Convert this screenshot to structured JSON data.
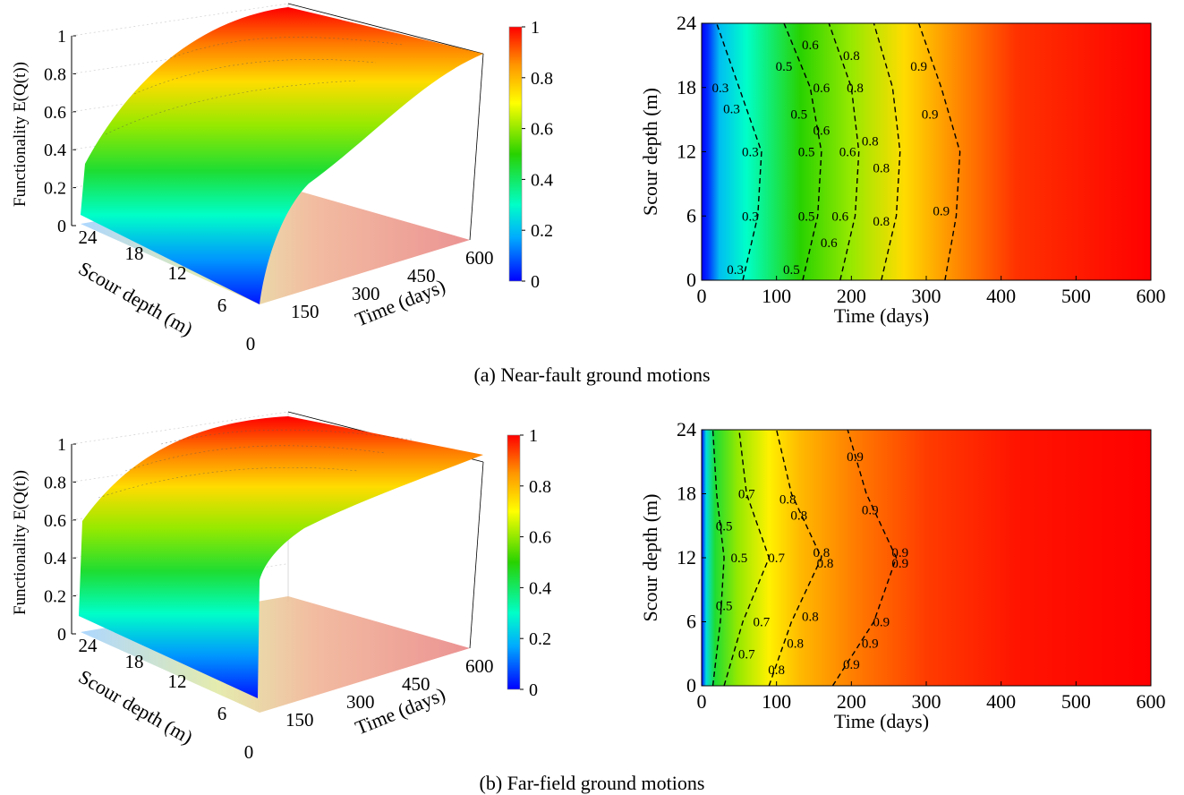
{
  "captions": {
    "a": "(a) Near-fault ground motions",
    "b": "(b) Far-field ground motions"
  },
  "colorbar": {
    "ticks": [
      "0",
      "0.2",
      "0.4",
      "0.6",
      "0.8",
      "1"
    ],
    "colors": [
      "#0000ff",
      "#00c8ff",
      "#00ff9a",
      "#30d000",
      "#ffff00",
      "#ffaa00",
      "#ff0000"
    ]
  },
  "chart_data": [
    {
      "type": "area",
      "panel": "a-3d",
      "zlabel": "Functionality E(Q(t))",
      "xlabel": "Time (days)",
      "ylabel": "Scour depth (m)",
      "z_ticks": [
        "0",
        "0.2",
        "0.4",
        "0.6",
        "0.8",
        "1"
      ],
      "x_ticks": [
        "150",
        "300",
        "450",
        "600"
      ],
      "y_ticks": [
        "0",
        "6",
        "12",
        "18",
        "24"
      ],
      "zlim": [
        0,
        1
      ],
      "xlim": [
        0,
        600
      ],
      "ylim": [
        0,
        24
      ]
    },
    {
      "type": "heatmap",
      "panel": "a-contour",
      "xlabel": "Time (days)",
      "ylabel": "Scour depth (m)",
      "x_ticks": [
        "0",
        "100",
        "200",
        "300",
        "400",
        "500",
        "600"
      ],
      "y_ticks": [
        "0",
        "6",
        "12",
        "18",
        "24"
      ],
      "xlim": [
        0,
        600
      ],
      "ylim": [
        0,
        24
      ],
      "contours": [
        {
          "level": "0.3",
          "y": [
            0,
            6,
            12,
            18,
            24
          ],
          "x": [
            55,
            75,
            80,
            50,
            20
          ]
        },
        {
          "level": "0.5",
          "y": [
            0,
            6,
            12,
            18,
            24
          ],
          "x": [
            135,
            155,
            160,
            145,
            110
          ]
        },
        {
          "level": "0.6",
          "y": [
            0,
            6,
            12,
            18,
            24
          ],
          "x": [
            185,
            205,
            210,
            200,
            170
          ]
        },
        {
          "level": "0.8",
          "y": [
            0,
            6,
            12,
            18,
            24
          ],
          "x": [
            240,
            260,
            265,
            255,
            230
          ]
        },
        {
          "level": "0.9",
          "y": [
            0,
            6,
            12,
            18,
            24
          ],
          "x": [
            325,
            340,
            345,
            320,
            290
          ]
        }
      ],
      "contour_labels": [
        {
          "text": "0.3",
          "x": 45,
          "y": 1
        },
        {
          "text": "0.3",
          "x": 65,
          "y": 6
        },
        {
          "text": "0.3",
          "x": 65,
          "y": 12
        },
        {
          "text": "0.3",
          "x": 40,
          "y": 16
        },
        {
          "text": "0.3",
          "x": 25,
          "y": 18
        },
        {
          "text": "0.5",
          "x": 120,
          "y": 1
        },
        {
          "text": "0.5",
          "x": 140,
          "y": 6
        },
        {
          "text": "0.5",
          "x": 140,
          "y": 12
        },
        {
          "text": "0.5",
          "x": 130,
          "y": 15.5
        },
        {
          "text": "0.5",
          "x": 110,
          "y": 20
        },
        {
          "text": "0.6",
          "x": 170,
          "y": 3.5
        },
        {
          "text": "0.6",
          "x": 185,
          "y": 6
        },
        {
          "text": "0.6",
          "x": 195,
          "y": 12
        },
        {
          "text": "0.6",
          "x": 160,
          "y": 14
        },
        {
          "text": "0.6",
          "x": 160,
          "y": 18
        },
        {
          "text": "0.6",
          "x": 145,
          "y": 22
        },
        {
          "text": "0.8",
          "x": 240,
          "y": 5.5
        },
        {
          "text": "0.8",
          "x": 240,
          "y": 10.5
        },
        {
          "text": "0.8",
          "x": 225,
          "y": 13
        },
        {
          "text": "0.8",
          "x": 205,
          "y": 18
        },
        {
          "text": "0.8",
          "x": 200,
          "y": 21
        },
        {
          "text": "0.9",
          "x": 320,
          "y": 6.5
        },
        {
          "text": "0.9",
          "x": 305,
          "y": 15.5
        },
        {
          "text": "0.9",
          "x": 290,
          "y": 20
        }
      ]
    },
    {
      "type": "area",
      "panel": "b-3d",
      "zlabel": "Functionality E(Q(t))",
      "xlabel": "Time (days)",
      "ylabel": "Scour depth (m)",
      "z_ticks": [
        "0",
        "0.2",
        "0.4",
        "0.6",
        "0.8",
        "1"
      ],
      "x_ticks": [
        "150",
        "300",
        "450",
        "600"
      ],
      "y_ticks": [
        "0",
        "6",
        "12",
        "18",
        "24"
      ],
      "zlim": [
        0,
        1
      ],
      "xlim": [
        0,
        600
      ],
      "ylim": [
        0,
        24
      ]
    },
    {
      "type": "heatmap",
      "panel": "b-contour",
      "xlabel": "Time (days)",
      "ylabel": "Scour depth (m)",
      "x_ticks": [
        "0",
        "100",
        "200",
        "300",
        "400",
        "500",
        "600"
      ],
      "y_ticks": [
        "0",
        "6",
        "12",
        "18",
        "24"
      ],
      "xlim": [
        0,
        600
      ],
      "ylim": [
        0,
        24
      ],
      "contours": [
        {
          "level": "0.5",
          "y": [
            0,
            6,
            12,
            18,
            24
          ],
          "x": [
            15,
            25,
            30,
            20,
            15
          ]
        },
        {
          "level": "0.7",
          "y": [
            0,
            6,
            12,
            18,
            24
          ],
          "x": [
            30,
            55,
            90,
            60,
            50
          ]
        },
        {
          "level": "0.8",
          "y": [
            0,
            6,
            12,
            18,
            24
          ],
          "x": [
            90,
            120,
            160,
            120,
            100
          ]
        },
        {
          "level": "0.9",
          "y": [
            0,
            6,
            12,
            18,
            24
          ],
          "x": [
            175,
            230,
            260,
            220,
            195
          ]
        }
      ],
      "contour_labels": [
        {
          "text": "0.5",
          "x": 30,
          "y": 7.5
        },
        {
          "text": "0.5",
          "x": 50,
          "y": 12
        },
        {
          "text": "0.5",
          "x": 30,
          "y": 15
        },
        {
          "text": "0.7",
          "x": 60,
          "y": 3
        },
        {
          "text": "0.7",
          "x": 80,
          "y": 6
        },
        {
          "text": "0.7",
          "x": 100,
          "y": 12
        },
        {
          "text": "0.7",
          "x": 60,
          "y": 18
        },
        {
          "text": "0.8",
          "x": 100,
          "y": 1.5
        },
        {
          "text": "0.8",
          "x": 125,
          "y": 4
        },
        {
          "text": "0.8",
          "x": 145,
          "y": 6.5
        },
        {
          "text": "0.8",
          "x": 165,
          "y": 11.5
        },
        {
          "text": "0.8",
          "x": 160,
          "y": 12.5
        },
        {
          "text": "0.8",
          "x": 130,
          "y": 16
        },
        {
          "text": "0.8",
          "x": 115,
          "y": 17.5
        },
        {
          "text": "0.9",
          "x": 200,
          "y": 2
        },
        {
          "text": "0.9",
          "x": 225,
          "y": 4
        },
        {
          "text": "0.9",
          "x": 240,
          "y": 6
        },
        {
          "text": "0.9",
          "x": 265,
          "y": 11.5
        },
        {
          "text": "0.9",
          "x": 265,
          "y": 12.5
        },
        {
          "text": "0.9",
          "x": 225,
          "y": 16.5
        },
        {
          "text": "0.9",
          "x": 205,
          "y": 21.5
        }
      ]
    }
  ]
}
